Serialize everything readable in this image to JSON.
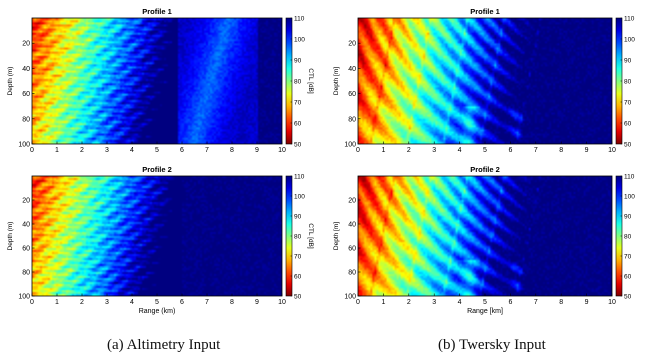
{
  "captions": {
    "a": "(a) Altimetry Input",
    "b": "(b) Twersky Input"
  },
  "chart_data": [
    {
      "type": "heatmap",
      "id": "a1",
      "title": "Profile 1",
      "xlabel": "",
      "ylabel": "Depth (m)",
      "colorbar_label": "CTL [dB]",
      "xlim": [
        0,
        10
      ],
      "ylim": [
        100,
        0
      ],
      "clim": [
        50,
        110
      ],
      "xticks": [
        0,
        1,
        2,
        3,
        4,
        5,
        6,
        7,
        8,
        9,
        10
      ],
      "yticks": [
        20,
        40,
        60,
        80,
        100
      ],
      "cticks": [
        50,
        60,
        70,
        80,
        90,
        100,
        110
      ],
      "colormap": "jet_reversed",
      "pattern": "altimetry",
      "cutoff_km": 9.0
    },
    {
      "type": "heatmap",
      "id": "a2",
      "title": "Profile 2",
      "xlabel": "Range (km)",
      "ylabel": "Depth (m)",
      "colorbar_label": "CTL [dB]",
      "xlim": [
        0,
        10
      ],
      "ylim": [
        100,
        0
      ],
      "clim": [
        50,
        110
      ],
      "xticks": [
        0,
        1,
        2,
        3,
        4,
        5,
        6,
        7,
        8,
        9,
        10
      ],
      "yticks": [
        20,
        40,
        60,
        80,
        100
      ],
      "cticks": [
        50,
        60,
        70,
        80,
        90,
        100,
        110
      ],
      "colormap": "jet_reversed",
      "pattern": "altimetry",
      "cutoff_km": 6.0
    },
    {
      "type": "heatmap",
      "id": "b1",
      "title": "Profile 1",
      "xlabel": "",
      "ylabel": "Depth [m]",
      "colorbar_label": "",
      "xlim": [
        0,
        10
      ],
      "ylim": [
        100,
        0
      ],
      "clim": [
        50,
        110
      ],
      "xticks": [
        0,
        1,
        2,
        3,
        4,
        5,
        6,
        7,
        8,
        9,
        10
      ],
      "yticks": [
        20,
        40,
        60,
        80,
        100
      ],
      "cticks": [
        50,
        60,
        70,
        80,
        90,
        100,
        110
      ],
      "colormap": "jet_reversed",
      "pattern": "twersky",
      "cutoff_km": 10.0
    },
    {
      "type": "heatmap",
      "id": "b2",
      "title": "Profile 2",
      "xlabel": "Range [km]",
      "ylabel": "Depth [m]",
      "colorbar_label": "",
      "xlim": [
        0,
        10
      ],
      "ylim": [
        100,
        0
      ],
      "clim": [
        50,
        110
      ],
      "xticks": [
        0,
        1,
        2,
        3,
        4,
        5,
        6,
        7,
        8,
        9,
        10
      ],
      "yticks": [
        20,
        40,
        60,
        80,
        100
      ],
      "cticks": [
        50,
        60,
        70,
        80,
        90,
        100,
        110
      ],
      "colormap": "jet_reversed",
      "pattern": "twersky",
      "cutoff_km": 10.0
    }
  ]
}
